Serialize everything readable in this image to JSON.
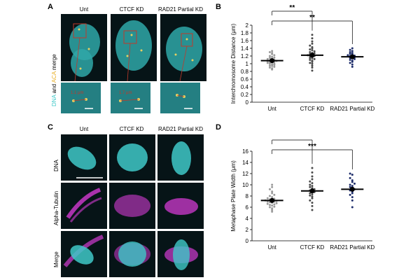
{
  "panels": {
    "a": {
      "letter": "A",
      "columns": [
        "Unt",
        "CTCF KD",
        "RAD21 Partial KD"
      ],
      "side_label": {
        "dna": "DNA",
        "and": " and ",
        "aca": "ACA",
        "rest": " merge"
      },
      "inset_labels": [
        "1.1 μm",
        "1.7 μm"
      ]
    },
    "c": {
      "letter": "C",
      "columns": [
        "Unt",
        "CTCF KD",
        "RAD21 Partial KD"
      ],
      "rows": [
        "DNA",
        "Alpha-Tubulin",
        "Merge"
      ]
    }
  },
  "colors": {
    "dna": "#3fc8c8",
    "aca": "#e8b02a",
    "tubulin": "#d23ad2",
    "mean_bar": "#000000",
    "unt_points": "#9a9a9a",
    "ctcf_points": "#4a4a4a",
    "rad21_points": "#1f2e6b"
  },
  "chart_data": [
    {
      "panel": "B",
      "type": "scatter",
      "ylabel": "Interchromosome Distance (μm)",
      "categories": [
        "Unt",
        "CTCF KD",
        "RAD21 Partial KD"
      ],
      "ylim": [
        0,
        2
      ],
      "yticks": [
        0,
        0.2,
        0.4,
        0.6,
        0.8,
        1,
        1.2,
        1.4,
        1.6,
        1.8,
        2
      ],
      "ytick_labels": [
        "0",
        "0.2",
        "0.4",
        "0.6",
        "0.8",
        "1",
        "1.2",
        "1.4",
        "1.6",
        "1.8",
        "2"
      ],
      "means": [
        1.08,
        1.22,
        1.18
      ],
      "significance": [
        {
          "from": 0,
          "to": 1,
          "label": "**"
        },
        {
          "from": 0,
          "to": 2,
          "label": "**"
        }
      ],
      "series": [
        {
          "values": [
            0.85,
            0.88,
            0.9,
            0.92,
            0.94,
            0.95,
            0.97,
            0.98,
            1.0,
            1.0,
            1.02,
            1.03,
            1.04,
            1.05,
            1.06,
            1.07,
            1.08,
            1.09,
            1.1,
            1.12,
            1.13,
            1.15,
            1.16,
            1.18,
            1.2,
            1.22,
            1.25,
            1.28,
            1.3,
            1.33
          ]
        },
        {
          "values": [
            0.82,
            0.9,
            0.95,
            1.0,
            1.02,
            1.05,
            1.08,
            1.1,
            1.12,
            1.14,
            1.15,
            1.18,
            1.2,
            1.2,
            1.22,
            1.24,
            1.25,
            1.27,
            1.28,
            1.3,
            1.32,
            1.35,
            1.37,
            1.4,
            1.43,
            1.47,
            1.52,
            1.58,
            1.66,
            1.75
          ]
        },
        {
          "values": [
            0.92,
            0.98,
            1.02,
            1.05,
            1.08,
            1.1,
            1.12,
            1.14,
            1.15,
            1.17,
            1.18,
            1.2,
            1.21,
            1.22,
            1.24,
            1.26,
            1.28,
            1.3,
            1.33,
            1.36,
            1.4
          ]
        }
      ]
    },
    {
      "panel": "D",
      "type": "scatter",
      "ylabel": "Metaphase Plate Width (μm)",
      "categories": [
        "Unt",
        "CTCF KD",
        "RAD21 Partial KD"
      ],
      "ylim": [
        0,
        16
      ],
      "yticks": [
        0,
        2,
        4,
        6,
        8,
        10,
        12,
        14,
        16
      ],
      "ytick_labels": [
        "0",
        "2",
        "4",
        "6",
        "8",
        "10",
        "12",
        "14",
        "16"
      ],
      "means": [
        7.2,
        8.9,
        9.2
      ],
      "significance": [
        {
          "from": 0,
          "to": 1,
          "label": "***"
        },
        {
          "from": 0,
          "to": 2,
          "label": "***"
        }
      ],
      "series": [
        {
          "values": [
            5.2,
            5.5,
            5.8,
            6.0,
            6.1,
            6.3,
            6.4,
            6.5,
            6.6,
            6.7,
            6.8,
            6.9,
            7.0,
            7.0,
            7.1,
            7.2,
            7.3,
            7.4,
            7.5,
            7.6,
            7.8,
            8.0,
            8.2,
            8.5,
            8.8,
            9.2,
            9.6,
            10.0
          ]
        },
        {
          "values": [
            5.5,
            6.2,
            6.8,
            7.2,
            7.6,
            7.9,
            8.1,
            8.3,
            8.5,
            8.7,
            8.9,
            9.0,
            9.2,
            9.4,
            9.6,
            9.8,
            10.0,
            10.3,
            10.6,
            11.0,
            11.5,
            12.2,
            13.0
          ]
        },
        {
          "values": [
            6.0,
            7.2,
            7.8,
            8.2,
            8.5,
            8.8,
            9.0,
            9.2,
            9.4,
            9.6,
            9.8,
            10.0,
            10.2,
            10.5,
            10.8,
            11.2,
            11.8,
            12.0
          ]
        }
      ]
    }
  ]
}
